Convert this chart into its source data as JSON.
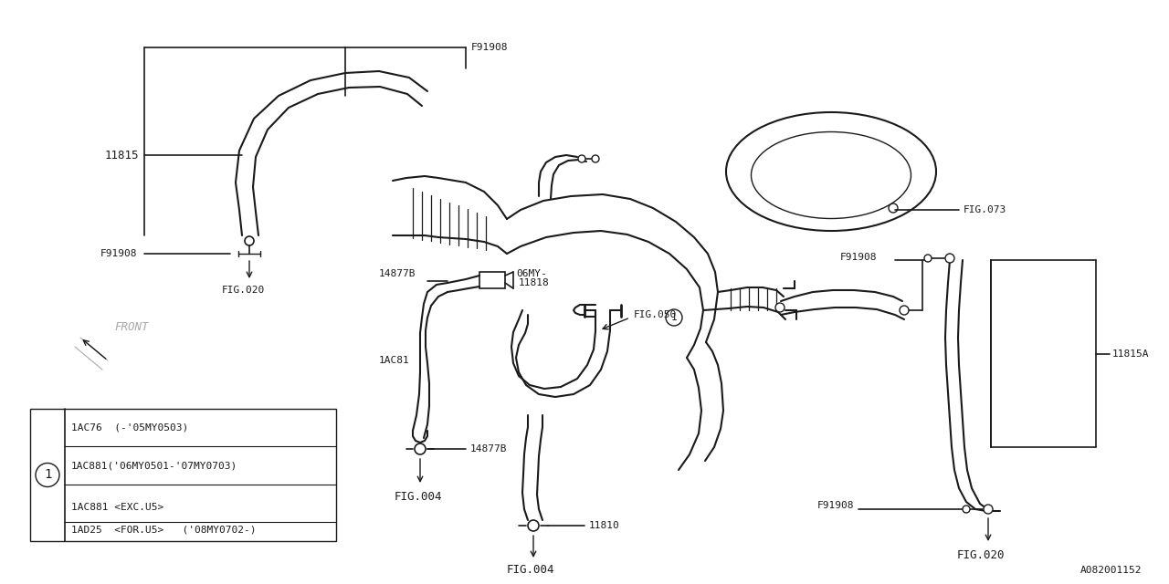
{
  "bg_color": "#ffffff",
  "line_color": "#1a1a1a",
  "part_number_ref": "A082001152",
  "labels": {
    "F91908_top": "F91908",
    "11815": "11815",
    "F91908_left": "F91908",
    "FIG020_left": "FIG.020",
    "06MY": "06MY-",
    "14877B_upper": "14877B",
    "11818": "11818",
    "FIG073": "FIG.073",
    "F91908_right_upper": "F91908",
    "1AC81": "1AC81",
    "FIG050": "FIG.050",
    "F91908_right_lower": "F91908",
    "11815A": "11815A",
    "14877B_lower": "14877B",
    "FIG004_left": "FIG.004",
    "11810": "11810",
    "FIG004_right": "FIG.004",
    "FIG020_right": "FIG.020",
    "FRONT": "FRONT"
  },
  "legend_rows": [
    "1AC76  (-’05MY0503)",
    "1AC881(’06MY0501-’07MY0703)",
    "1AC881 <EXC.U5>",
    "1AD25  <FOR.U5>   (’08MY0702-)"
  ],
  "legend_rows_display": [
    "1AC76  (-’05MY0503)",
    "1AC881(’06MY0501-’07MY0703)",
    "1AC881 <EXC.U5>",
    "1AD25  <FOR.U5>   (’08MY0702-)"
  ]
}
